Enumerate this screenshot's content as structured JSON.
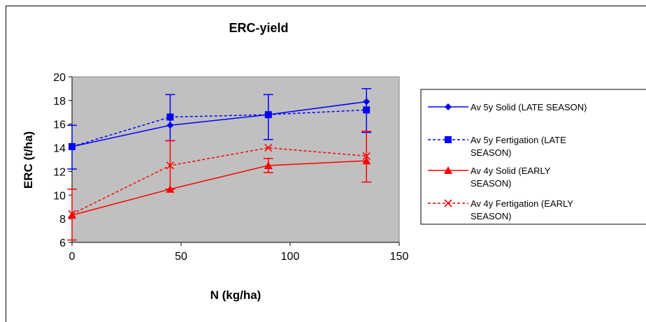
{
  "chart_data": {
    "type": "line",
    "title": "ERC-yield",
    "xlabel": "N (kg/ha)",
    "ylabel": "ERC (t/ha)",
    "xlim": [
      0,
      150
    ],
    "ylim": [
      6,
      20
    ],
    "x_ticks": [
      0,
      50,
      100,
      150
    ],
    "y_ticks": [
      6,
      8,
      10,
      12,
      14,
      16,
      18,
      20
    ],
    "legend_position": "right",
    "plot_background": "#c0c0c0",
    "series": [
      {
        "name": "Av 5y Solid    (LATE SEASON)",
        "color": "#0000ff",
        "dash": "solid",
        "marker": "diamond",
        "x": [
          0,
          45,
          90,
          135
        ],
        "y": [
          14.1,
          15.9,
          16.8,
          17.9
        ],
        "err_low": [
          12.2,
          null,
          14.7,
          15.3
        ],
        "err_high": [
          15.9,
          null,
          18.5,
          19.0
        ]
      },
      {
        "name": "Av 5y Fertigation (LATE SEASON)",
        "color": "#0000ff",
        "dash": "dashed",
        "marker": "square",
        "x": [
          0,
          45,
          90,
          135
        ],
        "y": [
          14.1,
          16.6,
          16.8,
          17.2
        ],
        "err_low": [
          null,
          14.6,
          null,
          null
        ],
        "err_high": [
          null,
          18.5,
          null,
          null
        ]
      },
      {
        "name": "Av 4y Solid (EARLY SEASON)",
        "color": "#ff0000",
        "dash": "solid",
        "marker": "triangle",
        "x": [
          0,
          45,
          90,
          135
        ],
        "y": [
          8.3,
          10.5,
          12.5,
          12.9
        ],
        "err_low": [
          6.2,
          null,
          11.9,
          11.1
        ],
        "err_high": [
          10.5,
          null,
          13.1,
          15.4
        ]
      },
      {
        "name": "Av 4y Fertigation (EARLY SEASON)",
        "color": "#ff0000",
        "dash": "dashed",
        "marker": "x",
        "x": [
          0,
          45,
          90,
          135
        ],
        "y": [
          8.4,
          12.5,
          14.0,
          13.3
        ],
        "err_low": [
          null,
          10.5,
          null,
          null
        ],
        "err_high": [
          null,
          14.6,
          null,
          null
        ]
      }
    ],
    "legend_lines": [
      [
        "Av 5y Solid    (LATE SEASON)"
      ],
      [
        "Av 5y Fertigation (LATE",
        "SEASON)"
      ],
      [
        "Av 4y Solid (EARLY",
        "SEASON)"
      ],
      [
        "Av 4y Fertigation (EARLY",
        "SEASON)"
      ]
    ]
  }
}
